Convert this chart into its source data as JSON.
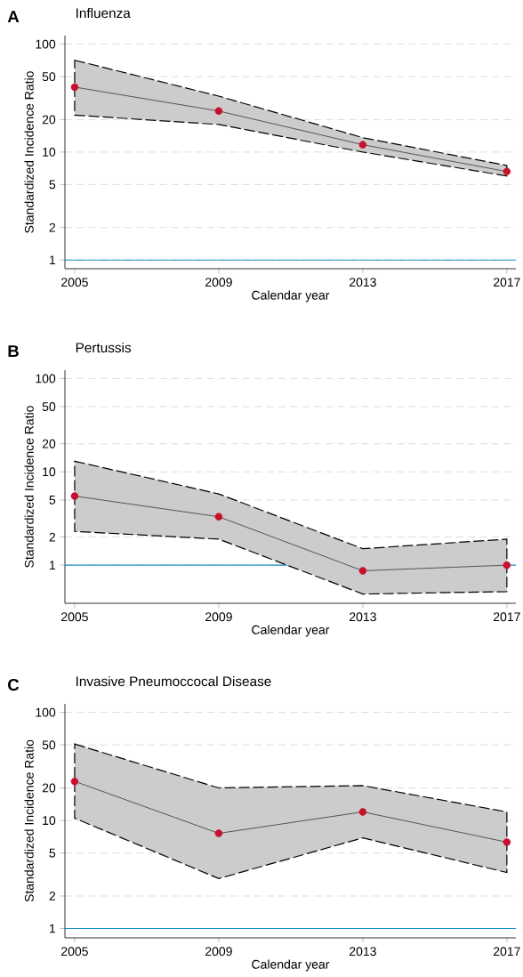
{
  "chart_data": [
    {
      "type": "line",
      "title": "Influenza",
      "annotations": [
        "A"
      ],
      "xlabel": "Calendar year",
      "ylabel": "Standardized Incidence Ratio",
      "log": "y",
      "grid": "y",
      "marker": "circle",
      "x": [
        2005,
        2009,
        2013,
        2017
      ],
      "xlim": [
        2004.73,
        2017.25
      ],
      "xticks": [
        2005,
        2009,
        2013,
        2017
      ],
      "ylim": [
        0.83,
        120
      ],
      "yticks": [
        1,
        2,
        5,
        10,
        20,
        50,
        100
      ],
      "series": [
        {
          "color": "#c8102e",
          "values": [
            40,
            24,
            11.7,
            6.6
          ],
          "lower": [
            22,
            18,
            10,
            6.0
          ],
          "upper": [
            71,
            33,
            13.6,
            7.5
          ]
        }
      ],
      "ref_lines": [
        {
          "axis": "y",
          "value": 1,
          "color": "#1a8fc9"
        }
      ]
    },
    {
      "type": "line",
      "title": "Pertussis",
      "annotations": [
        "B"
      ],
      "xlabel": "Calendar year",
      "ylabel": "Standardized Incidence Ratio",
      "log": "y",
      "grid": "y",
      "marker": "circle",
      "x": [
        2005,
        2009,
        2013,
        2017
      ],
      "xlim": [
        2004.73,
        2017.25
      ],
      "xticks": [
        2005,
        2009,
        2013,
        2017
      ],
      "ylim": [
        0.39,
        123
      ],
      "yticks": [
        1,
        2,
        5,
        10,
        20,
        50,
        100
      ],
      "series": [
        {
          "color": "#c8102e",
          "values": [
            5.5,
            3.3,
            0.87,
            1.0
          ],
          "lower": [
            2.3,
            1.9,
            0.49,
            0.52
          ],
          "upper": [
            13,
            5.8,
            1.5,
            1.9
          ]
        }
      ],
      "ref_lines": [
        {
          "axis": "y",
          "value": 1,
          "color": "#1a8fc9"
        }
      ]
    },
    {
      "type": "line",
      "title": "Invasive Pneumoccocal Disease",
      "annotations": [
        "C"
      ],
      "xlabel": "Calendar year",
      "ylabel": "Standardized Incidence Ratio",
      "log": "y",
      "grid": "y",
      "marker": "circle",
      "x": [
        2005,
        2009,
        2013,
        2017
      ],
      "xlim": [
        2004.73,
        2017.25
      ],
      "xticks": [
        2005,
        2009,
        2013,
        2017
      ],
      "ylim": [
        0.82,
        120
      ],
      "yticks": [
        1,
        2,
        5,
        10,
        20,
        50,
        100
      ],
      "series": [
        {
          "color": "#c8102e",
          "values": [
            23,
            7.6,
            12,
            6.3
          ],
          "lower": [
            10.5,
            2.9,
            6.9,
            3.3
          ],
          "upper": [
            51,
            20,
            21,
            12
          ]
        }
      ],
      "ref_lines": [
        {
          "axis": "y",
          "value": 1,
          "color": "#1a8fc9"
        }
      ]
    }
  ]
}
